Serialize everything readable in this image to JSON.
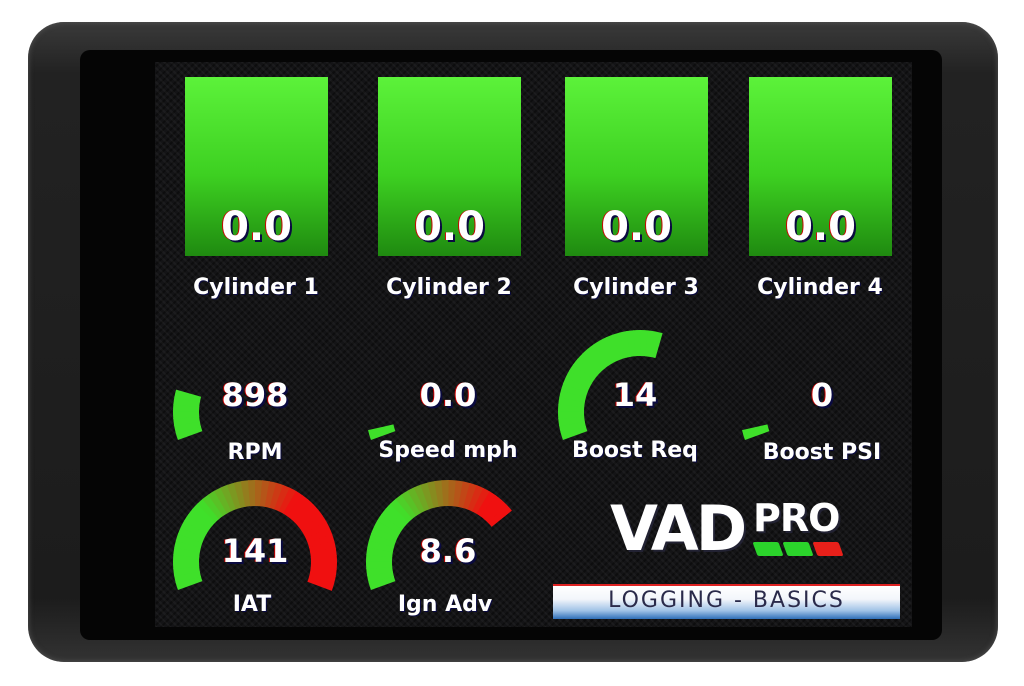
{
  "cylinders": [
    {
      "label": "Cylinder 1",
      "value": "0.0"
    },
    {
      "label": "Cylinder 2",
      "value": "0.0"
    },
    {
      "label": "Cylinder 3",
      "value": "0.0"
    },
    {
      "label": "Cylinder 4",
      "value": "0.0"
    }
  ],
  "gauges": [
    {
      "id": "rpm",
      "label": "RPM",
      "value": "898",
      "fill": 0.16,
      "style": "green"
    },
    {
      "id": "speed",
      "label": "Speed mph",
      "value": "0.0",
      "fill": 0.03,
      "style": "green"
    },
    {
      "id": "boost-req",
      "label": "Boost Req",
      "value": "14",
      "fill": 0.57,
      "style": "green"
    },
    {
      "id": "boost-psi",
      "label": "Boost PSI",
      "value": "0",
      "fill": 0.03,
      "style": "green"
    },
    {
      "id": "iat",
      "label": "IAT",
      "value": "141",
      "fill": 1.0,
      "style": "green-red"
    },
    {
      "id": "ign-adv",
      "label": "Ign Adv",
      "value": "8.6",
      "fill": 0.73,
      "style": "green-red"
    }
  ],
  "logo": {
    "main": "VAD",
    "sup": "PRO",
    "bar_colors": [
      "#2bd42b",
      "#2bd42b",
      "#e8201a"
    ]
  },
  "banner": {
    "text": "LOGGING - BASICS"
  },
  "colors": {
    "green": "#3fe02a",
    "red": "#f01010"
  }
}
